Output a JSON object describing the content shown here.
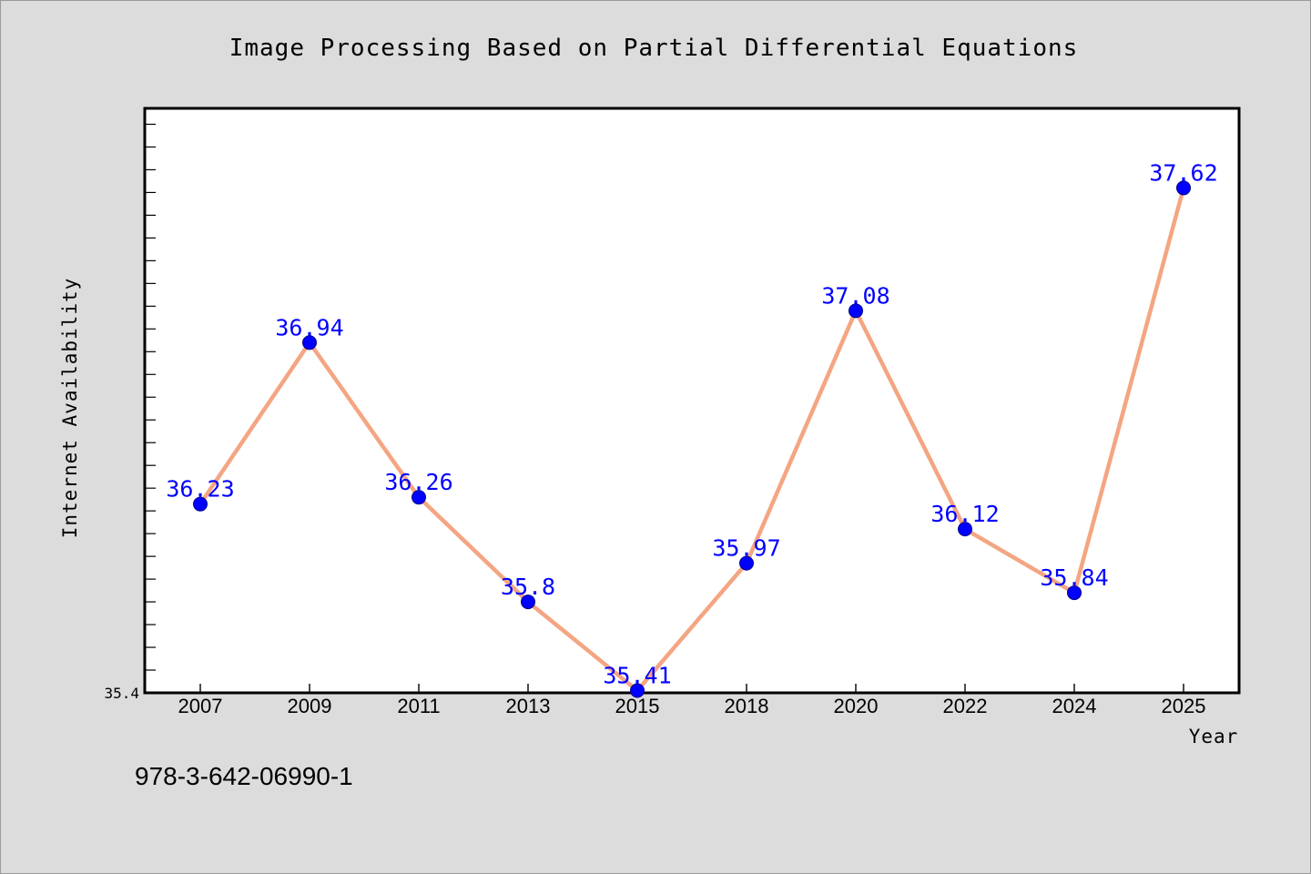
{
  "chart_data": {
    "type": "line",
    "title": "Image Processing Based on Partial Differential Equations",
    "xlabel": "Year",
    "ylabel": "Internet Availability",
    "categories": [
      "2007",
      "2009",
      "2011",
      "2013",
      "2015",
      "2018",
      "2020",
      "2022",
      "2024",
      "2025"
    ],
    "series": [
      {
        "values": [
          36.23,
          36.94,
          36.26,
          35.8,
          35.41,
          35.97,
          37.08,
          36.12,
          35.84,
          37.62
        ],
        "data_labels": [
          "36.23",
          "36.94",
          "36.26",
          "35.8",
          "35.41",
          "35.97",
          "37.08",
          "36.12",
          "35.84",
          "37.62"
        ]
      }
    ],
    "yticks_labeled": [
      "35.4"
    ],
    "ylim": [
      35.4,
      37.97
    ],
    "y_minor_tick_step": 0.1,
    "grid": false,
    "legend": "none",
    "colors": {
      "line": "#f4a582",
      "marker": "#0000ff",
      "marker_edge": "#00008b",
      "data_label": "#0000ff",
      "plot_background": "#ffffff",
      "figure_background": "#dcdcdc"
    }
  },
  "footnote": "978-3-642-06990-1"
}
